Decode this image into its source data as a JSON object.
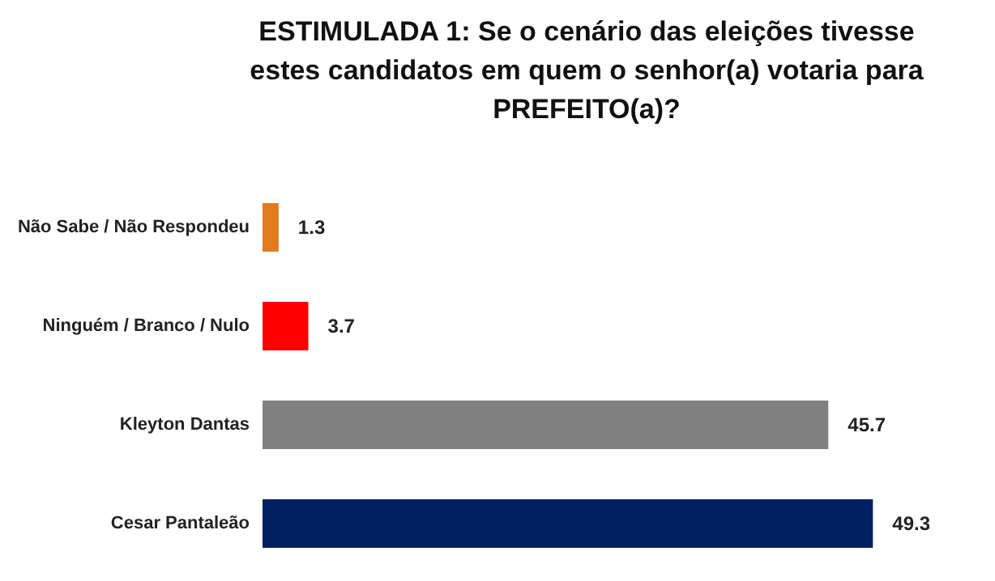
{
  "chart_data": {
    "type": "bar",
    "orientation": "horizontal",
    "title": "ESTIMULADA 1: Se o cenário das eleições tivesse estes candidatos em quem o senhor(a) votaria para PREFEITO(a)?",
    "categories": [
      "Não Sabe / Não Respondeu",
      "Ninguém / Branco / Nulo",
      "Kleyton Dantas",
      "Cesar Pantaleão"
    ],
    "values": [
      1.3,
      3.7,
      45.7,
      49.3
    ],
    "colors": [
      "#e07b20",
      "#ff0000",
      "#808080",
      "#002060"
    ],
    "data_labels": true
  }
}
